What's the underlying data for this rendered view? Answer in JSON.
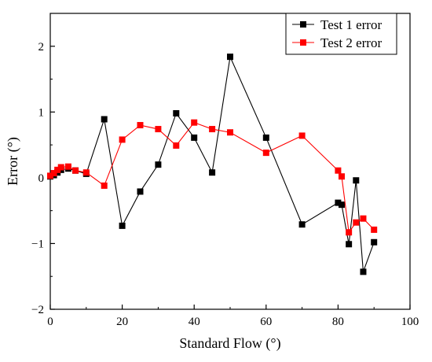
{
  "chart_data": {
    "type": "line",
    "xlabel": "Standard Flow (°)",
    "ylabel": "Error (°)",
    "xlim": [
      0,
      100
    ],
    "ylim": [
      -2,
      2.5
    ],
    "x_ticks": [
      0,
      20,
      40,
      60,
      80,
      100
    ],
    "x_tick_labels": [
      "0",
      "20",
      "40",
      "60",
      "80",
      "100"
    ],
    "y_ticks": [
      -2,
      -1,
      0,
      1,
      2
    ],
    "y_tick_labels": [
      "−2",
      "−1",
      "0",
      "1",
      "2"
    ],
    "grid": false,
    "legend_position": "top-right",
    "series": [
      {
        "name": "Test 1 error",
        "color": "#000000",
        "marker": "square",
        "x": [
          0,
          1,
          2,
          3,
          5,
          7,
          10,
          15,
          20,
          25,
          30,
          35,
          40,
          45,
          50,
          60,
          70,
          80,
          81,
          83,
          85,
          87,
          90
        ],
        "y": [
          0.02,
          0.04,
          0.08,
          0.12,
          0.14,
          0.11,
          0.06,
          0.89,
          -0.73,
          -0.21,
          0.2,
          0.98,
          0.61,
          0.08,
          1.84,
          0.61,
          -0.71,
          -0.38,
          -0.41,
          -1.01,
          -0.04,
          -1.43,
          -0.98
        ]
      },
      {
        "name": "Test 2 error",
        "color": "#ff0000",
        "marker": "square",
        "x": [
          0,
          1,
          2,
          3,
          5,
          7,
          10,
          15,
          20,
          25,
          30,
          35,
          40,
          45,
          50,
          60,
          70,
          80,
          81,
          83,
          85,
          87,
          90
        ],
        "y": [
          0.03,
          0.07,
          0.12,
          0.16,
          0.17,
          0.11,
          0.08,
          -0.12,
          0.58,
          0.8,
          0.74,
          0.49,
          0.84,
          0.74,
          0.69,
          0.38,
          0.64,
          0.11,
          0.02,
          -0.83,
          -0.68,
          -0.62,
          -0.79
        ]
      }
    ]
  }
}
